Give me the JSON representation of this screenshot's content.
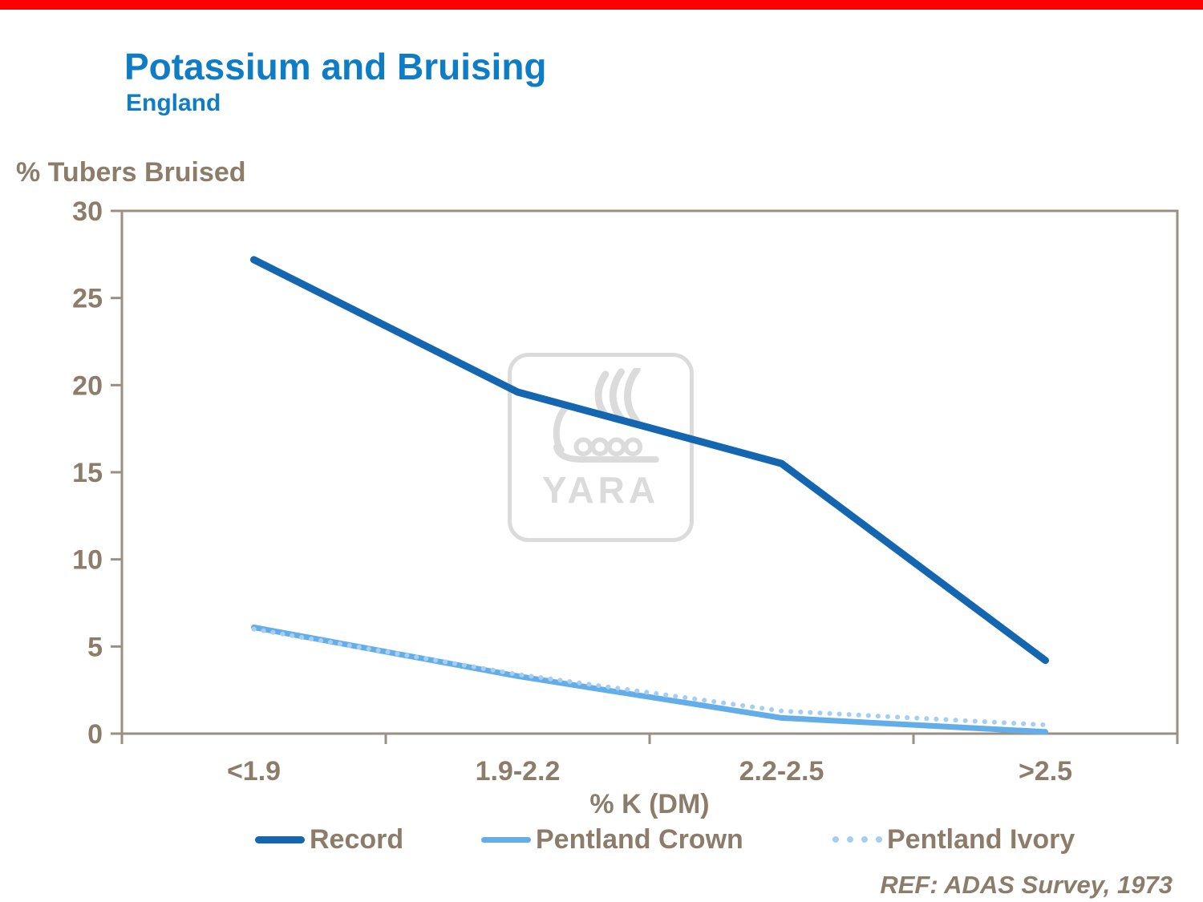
{
  "header": {
    "title": "Potassium and Bruising",
    "subtitle": "England"
  },
  "axis_titles": {
    "y": "% Tubers Bruised",
    "x": "% K (DM)"
  },
  "watermark": {
    "text": "YARA"
  },
  "footer": {
    "reference": "REF: ADAS Survey, 1973"
  },
  "theme": {
    "title_blue": "#0E7DC6",
    "text_brown": "#8C7D6B",
    "frame_brown": "#9C8F80",
    "top_bar_red": "#FF0000",
    "watermark_gray": "#DBDBDB"
  },
  "chart_data": {
    "type": "line",
    "title": "Potassium and Bruising",
    "subtitle": "England",
    "xlabel": "% K (DM)",
    "ylabel": "% Tubers Bruised",
    "categories": [
      "<1.9",
      "1.9-2.2",
      "2.2-2.5",
      ">2.5"
    ],
    "series": [
      {
        "name": "Record",
        "values": [
          27.2,
          19.6,
          15.5,
          4.2
        ],
        "color": "#1566B0",
        "width": 9,
        "style": "solid"
      },
      {
        "name": "Pentland Crown",
        "values": [
          6.1,
          3.3,
          0.9,
          0.1
        ],
        "color": "#63AEE8",
        "width": 7,
        "style": "solid"
      },
      {
        "name": "Pentland Ivory",
        "values": [
          6.0,
          3.4,
          1.3,
          0.5
        ],
        "color": "#A6CEF2",
        "width": 6,
        "style": "dotted"
      }
    ],
    "ylim": [
      0,
      30
    ],
    "yticks": [
      0,
      5,
      10,
      15,
      20,
      25,
      30
    ],
    "grid": false,
    "legend_position": "bottom",
    "annotation": "REF: ADAS Survey, 1973"
  }
}
